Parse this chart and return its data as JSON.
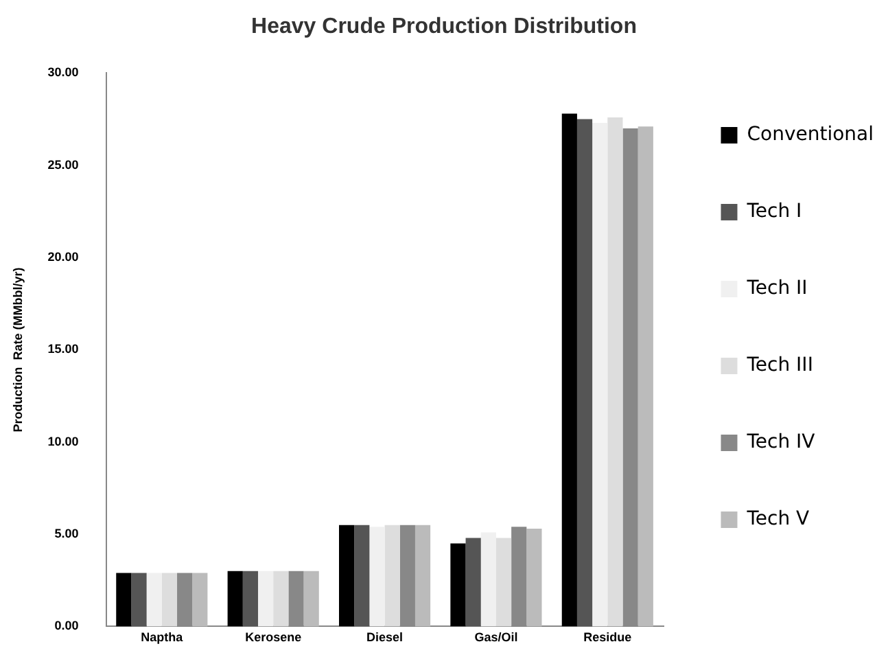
{
  "chart_data": {
    "type": "bar",
    "title": "Heavy Crude Production Distribution",
    "ylabel": "Production  Rate (MMbbl/yr)",
    "categories": [
      "Naptha",
      "Kerosene",
      "Diesel",
      "Gas/Oil",
      "Residue"
    ],
    "series": [
      {
        "name": "Conventional",
        "color": "#000000",
        "values": [
          2.9,
          3.0,
          5.5,
          4.5,
          27.8
        ]
      },
      {
        "name": "Tech I",
        "color": "#555555",
        "values": [
          2.9,
          3.0,
          5.5,
          4.8,
          27.5
        ]
      },
      {
        "name": "Tech II",
        "color": "#f0f0f0",
        "values": [
          2.9,
          3.0,
          5.4,
          5.1,
          27.3
        ]
      },
      {
        "name": "Tech III",
        "color": "#dddddd",
        "values": [
          2.9,
          3.0,
          5.5,
          4.8,
          27.6
        ]
      },
      {
        "name": "Tech IV",
        "color": "#888888",
        "values": [
          2.9,
          3.0,
          5.5,
          5.4,
          27.0
        ]
      },
      {
        "name": "Tech V",
        "color": "#bbbbbb",
        "values": [
          2.9,
          3.0,
          5.5,
          5.3,
          27.1
        ]
      }
    ],
    "ylim": [
      0,
      30
    ],
    "yticks": [
      {
        "value": 0,
        "label": "0.00"
      },
      {
        "value": 5,
        "label": "5.00"
      },
      {
        "value": 10,
        "label": "10.00"
      },
      {
        "value": 15,
        "label": "15.00"
      },
      {
        "value": 20,
        "label": "20.00"
      },
      {
        "value": 25,
        "label": "25.00"
      },
      {
        "value": 30,
        "label": "30.00"
      }
    ],
    "grid": false,
    "legend": "right"
  }
}
